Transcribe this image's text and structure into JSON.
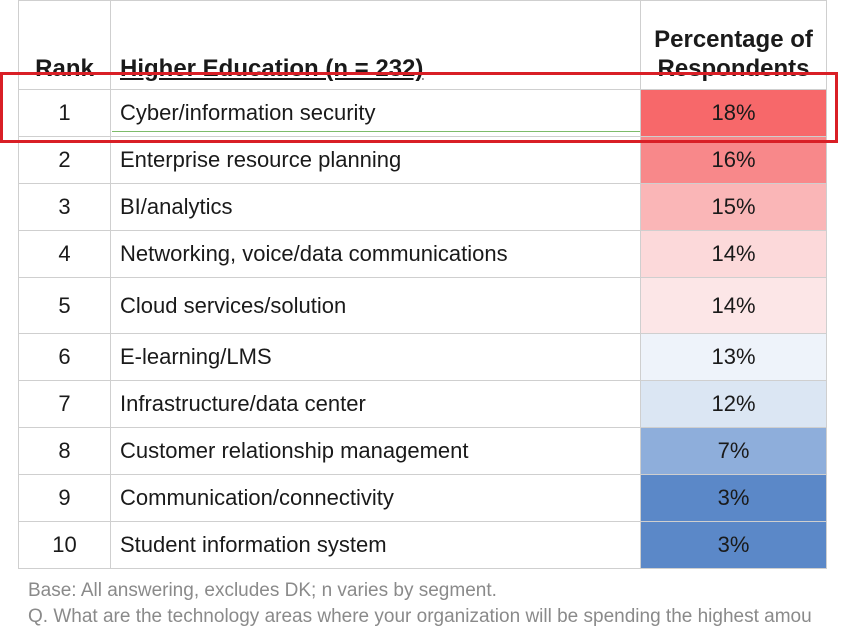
{
  "chart_data": {
    "type": "table",
    "title": "",
    "columns": [
      "Rank",
      "Higher Education (n = 232)",
      "Percentage of Respondents"
    ],
    "rows": [
      {
        "rank": "1",
        "area": "Cyber/information security",
        "pct": "18%",
        "value": 18,
        "color": "#f7686a"
      },
      {
        "rank": "2",
        "area": "Enterprise resource planning",
        "pct": "16%",
        "value": 16,
        "color": "#f8888a"
      },
      {
        "rank": "3",
        "area": "BI/analytics",
        "pct": "15%",
        "value": 15,
        "color": "#fab6b7"
      },
      {
        "rank": "4",
        "area": "Networking, voice/data communications",
        "pct": "14%",
        "value": 14,
        "color": "#fcd9da"
      },
      {
        "rank": "5",
        "area": "Cloud services/solution",
        "pct": "14%",
        "value": 14,
        "color": "#fce6e7"
      },
      {
        "rank": "6",
        "area": "E-learning/LMS",
        "pct": "13%",
        "value": 13,
        "color": "#eef3fa"
      },
      {
        "rank": "7",
        "area": "Infrastructure/data center",
        "pct": "12%",
        "value": 12,
        "color": "#dbe6f3"
      },
      {
        "rank": "8",
        "area": "Customer relationship management",
        "pct": "7%",
        "value": 7,
        "color": "#8eaedb"
      },
      {
        "rank": "9",
        "area": "Communication/connectivity",
        "pct": "3%",
        "value": 3,
        "color": "#5b88c8"
      },
      {
        "rank": "10",
        "area": "Student information system",
        "pct": "3%",
        "value": 3,
        "color": "#5b88c8"
      }
    ],
    "highlighted_rank": "1"
  },
  "header": {
    "rank_label": "Rank",
    "area_label": "Higher Education (n = 232)",
    "pct_label_line1": "Percentage of",
    "pct_label_line2": "Respondents"
  },
  "footnotes": {
    "base": "Base: All answering, excludes DK; n varies by segment.",
    "question": "Q. What are the technology areas where your organization will be spending the highest amou"
  },
  "colors": {
    "highlight_border": "#d91f26",
    "grid": "#cfcfcf",
    "footnote_text": "#8a8a8a"
  }
}
